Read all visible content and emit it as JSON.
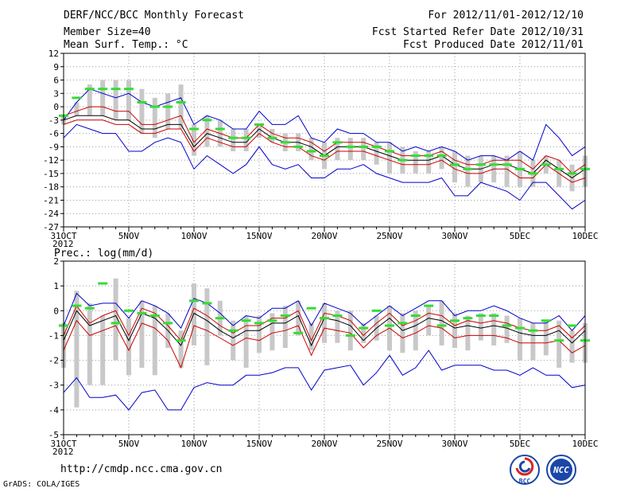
{
  "header": {
    "left": [
      "DERF/NCC/BCC Monthly Forecast",
      "Member Size=40",
      "Mean Surf. Temp.: °C"
    ],
    "right": [
      "For 2012/11/01-2012/12/10",
      "Fcst Started Refer Date 2012/10/31",
      "Fcst Produced Date 2012/11/01"
    ]
  },
  "footer": {
    "url": "http://cmdp.ncc.cma.gov.cn",
    "credit": "GrADS: COLA/IGES",
    "logo_bcc": "BCC",
    "logo_ncc": "NCC"
  },
  "colors": {
    "envelope": "#0000cc",
    "spread": "#cc0000",
    "mean": "#000000",
    "box": "#c8c8c8",
    "obs": "#33dd33"
  },
  "chart_data": [
    {
      "type": "line",
      "title": "Mean Surf. Temp.: °C",
      "x": [
        0,
        1,
        2,
        3,
        4,
        5,
        6,
        7,
        8,
        9,
        10,
        11,
        12,
        13,
        14,
        15,
        16,
        17,
        18,
        19,
        20,
        21,
        22,
        23,
        24,
        25,
        26,
        27,
        28,
        29,
        30,
        31,
        32,
        33,
        34,
        35,
        36,
        37,
        38,
        39,
        40
      ],
      "x_ticks": [
        {
          "x": 0,
          "label": "31OCT",
          "sub": "2012"
        },
        {
          "x": 5,
          "label": "5NOV"
        },
        {
          "x": 10,
          "label": "10NOV"
        },
        {
          "x": 15,
          "label": "15NOV"
        },
        {
          "x": 20,
          "label": "20NOV"
        },
        {
          "x": 25,
          "label": "25NOV"
        },
        {
          "x": 30,
          "label": "30NOV"
        },
        {
          "x": 35,
          "label": "5DEC"
        },
        {
          "x": 40,
          "label": "10DEC"
        }
      ],
      "ylim": [
        -27,
        12
      ],
      "yticks": [
        12,
        9,
        6,
        3,
        0,
        -3,
        -6,
        -9,
        -12,
        -15,
        -18,
        -21,
        -24,
        -27
      ],
      "grid": true,
      "series": [
        {
          "name": "max",
          "values": [
            -3,
            1,
            4,
            3,
            2,
            3,
            1,
            0,
            1,
            2,
            -4,
            -2,
            -3,
            -5,
            -5,
            -1,
            -4,
            -4,
            -2,
            -7,
            -8,
            -5,
            -6,
            -6,
            -8,
            -8,
            -10,
            -9,
            -10,
            -9,
            -10,
            -12,
            -11,
            -11,
            -12,
            -10,
            -12,
            -4,
            -7,
            -11,
            -9
          ]
        },
        {
          "name": "upper",
          "values": [
            -2,
            -1,
            0,
            0,
            -1,
            -1,
            -4,
            -4,
            -3,
            -2,
            -8,
            -5,
            -6,
            -7,
            -7,
            -4,
            -6,
            -7,
            -7,
            -8,
            -10,
            -8,
            -8,
            -8,
            -9,
            -10,
            -11,
            -11,
            -11,
            -10,
            -12,
            -13,
            -13,
            -12,
            -12,
            -12,
            -14,
            -11,
            -12,
            -15,
            -13
          ]
        },
        {
          "name": "mean",
          "values": [
            -3,
            -2,
            -2,
            -2,
            -3,
            -3,
            -5,
            -5,
            -4,
            -4,
            -9,
            -6,
            -7,
            -8,
            -8,
            -5,
            -7,
            -8,
            -8,
            -9,
            -11,
            -9,
            -9,
            -9,
            -10,
            -11,
            -12,
            -12,
            -12,
            -11,
            -13,
            -14,
            -14,
            -13,
            -13,
            -14,
            -15,
            -12,
            -14,
            -16,
            -14
          ]
        },
        {
          "name": "lower",
          "values": [
            -4,
            -3,
            -3,
            -3,
            -4,
            -4,
            -6,
            -6,
            -5,
            -5,
            -10,
            -7,
            -8,
            -9,
            -9,
            -6,
            -8,
            -9,
            -9,
            -11,
            -12,
            -10,
            -10,
            -10,
            -11,
            -12,
            -13,
            -13,
            -13,
            -12,
            -14,
            -15,
            -15,
            -14,
            -14,
            -16,
            -16,
            -13,
            -15,
            -17,
            -16
          ]
        },
        {
          "name": "min",
          "values": [
            -7,
            -4,
            -5,
            -6,
            -6,
            -10,
            -10,
            -8,
            -7,
            -8,
            -14,
            -11,
            -13,
            -15,
            -13,
            -9,
            -13,
            -14,
            -13,
            -16,
            -16,
            -14,
            -14,
            -13,
            -15,
            -16,
            -17,
            -17,
            -17,
            -16,
            -20,
            -20,
            -17,
            -18,
            -19,
            -21,
            -17,
            -17,
            -20,
            -23,
            -21
          ]
        }
      ],
      "boxes": [
        [
          -2,
          -4
        ],
        [
          1,
          -2
        ],
        [
          5,
          -2
        ],
        [
          6,
          -2
        ],
        [
          6,
          -3
        ],
        [
          6,
          -3
        ],
        [
          4,
          -6
        ],
        [
          2,
          -7
        ],
        [
          3,
          -5
        ],
        [
          5,
          -5
        ],
        [
          -4,
          -11
        ],
        [
          -2,
          -9
        ],
        [
          -3,
          -9
        ],
        [
          -5,
          -10
        ],
        [
          -5,
          -10
        ],
        [
          -4,
          -7
        ],
        [
          -5,
          -8
        ],
        [
          -6,
          -10
        ],
        [
          -6,
          -10
        ],
        [
          -7,
          -12
        ],
        [
          -8,
          -14
        ],
        [
          -7,
          -12
        ],
        [
          -7,
          -12
        ],
        [
          -7,
          -12
        ],
        [
          -8,
          -13
        ],
        [
          -8,
          -15
        ],
        [
          -9,
          -15
        ],
        [
          -10,
          -15
        ],
        [
          -10,
          -15
        ],
        [
          -9,
          -14
        ],
        [
          -10,
          -17
        ],
        [
          -11,
          -18
        ],
        [
          -11,
          -17
        ],
        [
          -11,
          -17
        ],
        [
          -11,
          -18
        ],
        [
          -10,
          -18
        ],
        [
          -12,
          -18
        ],
        [
          -11,
          -15
        ],
        [
          -12,
          -18
        ],
        [
          -13,
          -19
        ],
        [
          -11,
          -18
        ]
      ],
      "obs": [
        -2,
        2,
        4,
        4,
        4,
        4,
        1,
        0,
        0,
        1,
        -5,
        -3,
        -5,
        -7,
        -7,
        -4,
        -7,
        -8,
        -9,
        -10,
        -11,
        -8,
        -9,
        -9,
        -9,
        -10,
        -12,
        -11,
        -11,
        -11,
        -13,
        -14,
        -13,
        -13,
        -13,
        -14,
        -15,
        -13,
        -14,
        -15,
        -14
      ]
    },
    {
      "type": "line",
      "title": "Prec.: log(mm/d)",
      "x": [
        0,
        1,
        2,
        3,
        4,
        5,
        6,
        7,
        8,
        9,
        10,
        11,
        12,
        13,
        14,
        15,
        16,
        17,
        18,
        19,
        20,
        21,
        22,
        23,
        24,
        25,
        26,
        27,
        28,
        29,
        30,
        31,
        32,
        33,
        34,
        35,
        36,
        37,
        38,
        39,
        40
      ],
      "x_ticks": [
        {
          "x": 0,
          "label": "31OCT",
          "sub": "2012"
        },
        {
          "x": 5,
          "label": "5NOV"
        },
        {
          "x": 10,
          "label": "10NOV"
        },
        {
          "x": 15,
          "label": "15NOV"
        },
        {
          "x": 20,
          "label": "20NOV"
        },
        {
          "x": 25,
          "label": "25NOV"
        },
        {
          "x": 30,
          "label": "30NOV"
        },
        {
          "x": 35,
          "label": "5DEC"
        },
        {
          "x": 40,
          "label": "10DEC"
        }
      ],
      "ylim": [
        -5,
        2
      ],
      "yticks": [
        2,
        1,
        0,
        -1,
        -2,
        -3,
        -4,
        -5
      ],
      "grid": true,
      "series": [
        {
          "name": "max",
          "values": [
            -0.6,
            0.7,
            0.2,
            0.3,
            0.3,
            -0.3,
            0.4,
            0.2,
            -0.1,
            -0.7,
            0.5,
            0.3,
            -0.1,
            -0.6,
            -0.2,
            -0.3,
            0.1,
            0.1,
            0.4,
            -0.6,
            0.3,
            0.1,
            -0.1,
            -0.6,
            -0.2,
            0.2,
            -0.2,
            0.1,
            0.4,
            0.4,
            -0.2,
            0,
            0,
            0.2,
            0,
            -0.3,
            -0.5,
            -0.5,
            -0.2,
            -0.8,
            -0.2
          ]
        },
        {
          "name": "upper",
          "values": [
            -1.0,
            0.2,
            -0.5,
            -0.2,
            0,
            -1.0,
            0.1,
            -0.1,
            -0.6,
            -1.2,
            0.1,
            -0.2,
            -0.6,
            -0.9,
            -0.6,
            -0.6,
            -0.3,
            -0.3,
            0,
            -1.2,
            -0.1,
            -0.2,
            -0.4,
            -1.0,
            -0.5,
            -0.1,
            -0.6,
            -0.4,
            -0.1,
            -0.2,
            -0.6,
            -0.4,
            -0.5,
            -0.4,
            -0.5,
            -0.7,
            -0.8,
            -0.8,
            -0.6,
            -1.1,
            -0.6
          ]
        },
        {
          "name": "mean",
          "values": [
            -1.2,
            0,
            -0.6,
            -0.4,
            -0.2,
            -1.2,
            -0.1,
            -0.3,
            -0.8,
            -1.4,
            -0.1,
            -0.4,
            -0.8,
            -1.1,
            -0.8,
            -0.8,
            -0.5,
            -0.5,
            -0.2,
            -1.4,
            -0.3,
            -0.4,
            -0.6,
            -1.2,
            -0.7,
            -0.3,
            -0.8,
            -0.6,
            -0.3,
            -0.4,
            -0.7,
            -0.6,
            -0.7,
            -0.6,
            -0.7,
            -0.9,
            -1.0,
            -1.0,
            -0.8,
            -1.3,
            -0.8
          ]
        },
        {
          "name": "lower",
          "values": [
            -1.6,
            -0.4,
            -1.0,
            -0.8,
            -0.6,
            -1.6,
            -0.5,
            -0.7,
            -1.2,
            -2.3,
            -0.6,
            -0.8,
            -1.1,
            -1.4,
            -1.1,
            -1.2,
            -0.9,
            -0.8,
            -0.6,
            -1.8,
            -0.7,
            -0.8,
            -0.9,
            -1.5,
            -1.0,
            -0.7,
            -1.1,
            -0.9,
            -0.6,
            -0.7,
            -1.1,
            -1.0,
            -1.0,
            -1.0,
            -1.1,
            -1.3,
            -1.3,
            -1.3,
            -1.2,
            -1.7,
            -1.4
          ]
        },
        {
          "name": "min",
          "values": [
            -3.3,
            -2.7,
            -3.5,
            -3.5,
            -3.4,
            -4.0,
            -3.3,
            -3.2,
            -4.0,
            -4.0,
            -3.1,
            -2.9,
            -3.0,
            -3.0,
            -2.6,
            -2.6,
            -2.5,
            -2.3,
            -2.3,
            -3.2,
            -2.4,
            -2.3,
            -2.2,
            -3.0,
            -2.5,
            -1.8,
            -2.6,
            -2.3,
            -1.6,
            -2.4,
            -2.2,
            -2.2,
            -2.2,
            -2.4,
            -2.4,
            -2.6,
            -2.3,
            -2.6,
            -2.6,
            -3.1,
            -3.0
          ]
        }
      ],
      "boxes": [
        [
          -0.5,
          -2.3
        ],
        [
          0.8,
          -3.9
        ],
        [
          0.3,
          -3.0
        ],
        [
          -0.2,
          -3.0
        ],
        [
          1.3,
          -2.0
        ],
        [
          -0.3,
          -2.6
        ],
        [
          0.4,
          -2.3
        ],
        [
          0.2,
          -2.6
        ],
        [
          -0.1,
          -1.5
        ],
        [
          -0.8,
          -2.3
        ],
        [
          1.1,
          -1.4
        ],
        [
          0.9,
          -2.2
        ],
        [
          0.4,
          -1.0
        ],
        [
          -0.4,
          -2.0
        ],
        [
          -0.2,
          -2.3
        ],
        [
          -0.2,
          -1.7
        ],
        [
          -0.1,
          -1.6
        ],
        [
          0.2,
          -1.5
        ],
        [
          0.4,
          -1.0
        ],
        [
          -0.5,
          -1.6
        ],
        [
          0.3,
          -1.3
        ],
        [
          0,
          -1.3
        ],
        [
          0,
          -1.6
        ],
        [
          -0.5,
          -1.3
        ],
        [
          -0.2,
          -1.2
        ],
        [
          0.2,
          -1.6
        ],
        [
          -0.1,
          -1.7
        ],
        [
          0,
          -1.6
        ],
        [
          0.2,
          -1.0
        ],
        [
          0.4,
          -1.4
        ],
        [
          -0.1,
          -1.5
        ],
        [
          -0.2,
          -1.6
        ],
        [
          -0.1,
          -1.2
        ],
        [
          -0.1,
          -1.4
        ],
        [
          -0.2,
          -1.3
        ],
        [
          -0.3,
          -2.0
        ],
        [
          -0.5,
          -2.0
        ],
        [
          -0.4,
          -1.8
        ],
        [
          -0.4,
          -2.3
        ],
        [
          -0.8,
          -2.1
        ],
        [
          -0.5,
          -2.1
        ]
      ],
      "obs": [
        -0.6,
        0.2,
        0.1,
        1.1,
        -0.5,
        0,
        -0.1,
        -0.2,
        -0.5,
        -1.2,
        0.4,
        0.3,
        -0.3,
        -0.8,
        -0.4,
        -0.5,
        -0.4,
        -0.2,
        -0.9,
        0.1,
        -0.3,
        -0.2,
        -1.0,
        -0.7,
        0,
        -0.6,
        -0.5,
        -0.2,
        0.2,
        -0.6,
        -0.4,
        -0.3,
        -0.2,
        -0.2,
        -0.6,
        -0.7,
        -0.8,
        -0.4,
        -1.2,
        -0.6,
        -1.2
      ]
    }
  ]
}
